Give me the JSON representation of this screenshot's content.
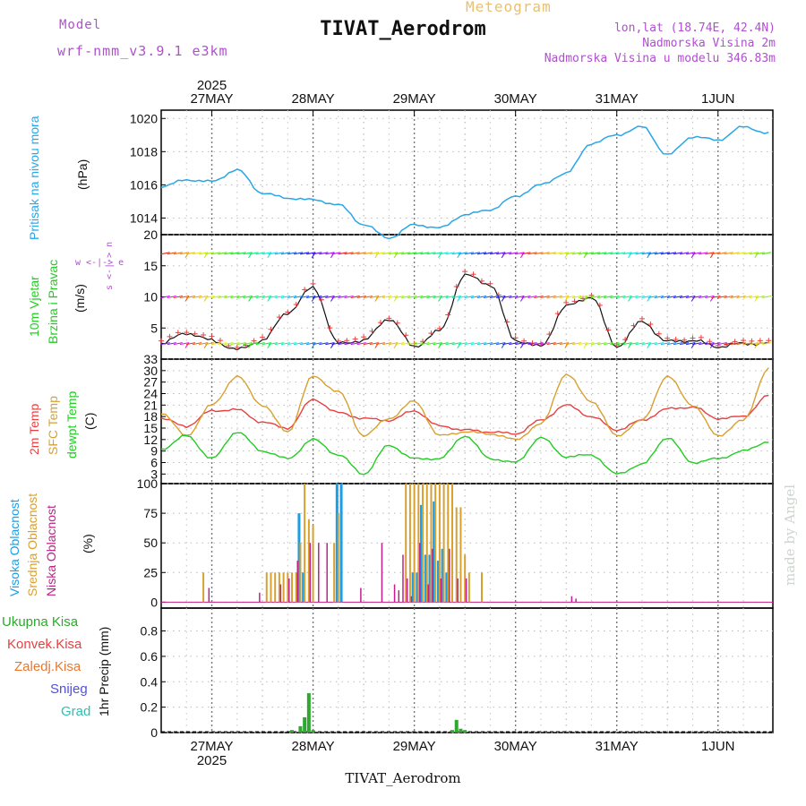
{
  "header": {
    "title": "TIVAT_Aerodrom",
    "meteogram_label": "Meteogram",
    "model_label": "Model",
    "model_name": "wrf-nmm_v3.9.1 e3km",
    "lonlat": "lon,lat (18.74E, 42.4N)",
    "elevation": "Nadmorska Visina 2m",
    "model_elevation": "Nadmorska Visina u modelu 346.83m",
    "footer_location": "TIVAT_Aerodrom",
    "credit": "made by Angel"
  },
  "legend": {
    "pressure": [
      "Pritisak na nivou mora"
    ],
    "pressure_unit": "(hPa)",
    "wind": [
      "10m Vjetar",
      "Brzina i Pravac"
    ],
    "wind_unit": "(m/s)",
    "wind_compass": "w <-|-> e",
    "wind_compass_vertical": "s <-|-> n",
    "temp": [
      "2m Temp",
      "SFC Temp",
      "dewpt Temp"
    ],
    "temp_unit": "(C)",
    "cloud": [
      "Visoka Oblacnost",
      "Srednja Oblacnost",
      "Niska Oblacnost"
    ],
    "cloud_unit": "(%)",
    "precip": [
      "Ukupna Kisa",
      "Konvek.Kisa",
      "Zaledj.Kisa",
      "Snijeg",
      "Grad"
    ],
    "precip_unit": "1hr Precip (mm)"
  },
  "colors": {
    "pressure": "#2aa6e6",
    "temp2m": "#e84040",
    "sfc": "#d8a030",
    "dewpt": "#22cc22",
    "cloud_high": "#1a9ee6",
    "cloud_mid": "#d8a030",
    "cloud_low": "#c0208a",
    "precip_total": "#2ea82e",
    "precip_conv": "#e84040",
    "precip_frz": "#e87830",
    "precip_snow": "#5050e0",
    "precip_grad": "#30c0b0",
    "label_purple": "#b04fd0"
  },
  "chart_data": [
    {
      "type": "line",
      "title": "Pritisak na nivou mora",
      "ylabel": "(hPa)",
      "xlabel": "",
      "x_start_label": "2025",
      "date_labels": [
        "27MAY",
        "28MAY",
        "29MAY",
        "30MAY",
        "31MAY",
        "1JUN"
      ],
      "ylim": [
        1013,
        1020.5
      ],
      "yticks": [
        1014,
        1016,
        1018,
        1020
      ],
      "x_hours": [
        0,
        6,
        12,
        18,
        24,
        30,
        36,
        42,
        48,
        54,
        60,
        66,
        72,
        78,
        84,
        90,
        96,
        102,
        108,
        114,
        120,
        126,
        132,
        138,
        144
      ],
      "series": [
        {
          "name": "MSLP",
          "values": [
            1015.9,
            1016.3,
            1016.2,
            1016.9,
            1015.5,
            1015.2,
            1015.1,
            1014.8,
            1013.6,
            1012.8,
            1013.6,
            1013.4,
            1014.2,
            1014.5,
            1015.3,
            1016.0,
            1016.7,
            1018.5,
            1019.0,
            1019.5,
            1017.8,
            1018.9,
            1018.7,
            1019.5,
            1019.1
          ]
        }
      ]
    },
    {
      "type": "line",
      "title": "10m Vjetar Brzina i Pravac",
      "ylabel": "(m/s)",
      "xlabel": "",
      "ylim": [
        0,
        20
      ],
      "yticks": [
        5,
        10,
        15,
        20
      ],
      "x_hours": [
        0,
        6,
        12,
        18,
        24,
        30,
        36,
        42,
        48,
        54,
        60,
        66,
        72,
        78,
        84,
        90,
        96,
        102,
        108,
        114,
        120,
        126,
        132,
        138,
        144
      ],
      "series": [
        {
          "name": "wind speed",
          "values": [
            2.5,
            4.2,
            3.0,
            1.5,
            3.0,
            7.5,
            11.5,
            2.5,
            3.0,
            6.5,
            2.0,
            4.5,
            13.5,
            12.0,
            3.0,
            2.0,
            8.5,
            10.0,
            2.0,
            6.0,
            2.8,
            3.0,
            2.0,
            2.5,
            2.5
          ]
        }
      ]
    },
    {
      "type": "line",
      "title": "2m Temp / SFC Temp / dewpt Temp",
      "ylabel": "(C)",
      "xlabel": "",
      "ylim": [
        0.5,
        33
      ],
      "yticks": [
        3,
        6,
        9,
        12,
        15,
        18,
        21,
        24,
        27,
        30,
        33
      ],
      "x_hours": [
        0,
        6,
        12,
        18,
        24,
        30,
        36,
        42,
        48,
        54,
        60,
        66,
        72,
        78,
        84,
        90,
        96,
        102,
        108,
        114,
        120,
        126,
        132,
        138,
        144
      ],
      "series": [
        {
          "name": "2m Temp",
          "values": [
            17.5,
            15.5,
            19.5,
            19.8,
            16.5,
            15.0,
            22.5,
            19.0,
            17.5,
            17.0,
            19.5,
            15.5,
            14.5,
            14.0,
            13.5,
            17.0,
            21.0,
            18.0,
            14.5,
            17.0,
            20.0,
            20.5,
            17.5,
            18.0,
            23.5
          ]
        },
        {
          "name": "SFC Temp",
          "values": [
            19.0,
            13.0,
            21.0,
            28.5,
            21.0,
            14.0,
            28.5,
            24.5,
            13.0,
            17.5,
            22.0,
            13.0,
            14.0,
            13.5,
            12.0,
            16.0,
            29.0,
            22.0,
            13.0,
            17.0,
            28.5,
            21.0,
            13.0,
            17.0,
            30.5
          ]
        },
        {
          "name": "dewpt Temp",
          "values": [
            9.5,
            13.0,
            7.0,
            14.0,
            9.0,
            7.0,
            12.0,
            8.0,
            3.0,
            10.5,
            7.0,
            7.0,
            13.0,
            7.0,
            6.0,
            12.5,
            7.5,
            8.0,
            3.0,
            5.5,
            12.5,
            6.0,
            7.0,
            9.0,
            11.5
          ]
        }
      ]
    },
    {
      "type": "bar",
      "title": "Visoka / Srednja / Niska Oblacnost",
      "ylabel": "(%)",
      "xlabel": "",
      "ylim": [
        -5,
        100
      ],
      "yticks": [
        0,
        25,
        50,
        75,
        100
      ],
      "series": [
        {
          "name": "Visoka Oblacnost",
          "hours": [
            33,
            34,
            42,
            43,
            60,
            61,
            62,
            63,
            64,
            65,
            66,
            67,
            68
          ],
          "values": [
            75,
            25,
            100,
            100,
            25,
            25,
            82,
            40,
            40,
            85,
            35,
            45,
            25
          ]
        },
        {
          "name": "Srednja Oblacnost",
          "hours": [
            10,
            25,
            26,
            27,
            28,
            29,
            30,
            31,
            32,
            33,
            34,
            35,
            36,
            41,
            42,
            58,
            59,
            60,
            61,
            62,
            63,
            64,
            65,
            66,
            67,
            68,
            69,
            70,
            71,
            72,
            73,
            76
          ],
          "values": [
            25,
            25,
            25,
            25,
            25,
            25,
            25,
            25,
            25,
            50,
            100,
            70,
            65,
            50,
            75,
            100,
            100,
            100,
            100,
            100,
            100,
            100,
            100,
            100,
            100,
            100,
            100,
            80,
            80,
            40,
            25,
            25
          ]
        },
        {
          "name": "Niska Oblacnost",
          "hours": [
            11,
            23,
            28,
            30,
            32,
            35,
            37,
            39,
            47,
            52,
            55,
            56,
            57,
            58,
            59,
            61,
            63,
            64,
            66,
            68,
            70,
            72,
            97,
            98
          ],
          "values": [
            12,
            8,
            15,
            20,
            35,
            50,
            50,
            50,
            12,
            50,
            15,
            10,
            40,
            20,
            5,
            50,
            15,
            45,
            20,
            45,
            20,
            20,
            5,
            3
          ]
        }
      ]
    },
    {
      "type": "bar",
      "title": "1hr Precip",
      "ylabel": "1hr Precip (mm)",
      "xlabel": "",
      "ylim": [
        0,
        0.98
      ],
      "yticks": [
        0,
        0.2,
        0.4,
        0.6,
        0.8
      ],
      "series": [
        {
          "name": "Ukupna Kisa",
          "hours": [
            31,
            33,
            34,
            35,
            36,
            69,
            70,
            71,
            72
          ],
          "values": [
            0.02,
            0.05,
            0.12,
            0.31,
            0.02,
            0.02,
            0.1,
            0.03,
            0.02
          ]
        },
        {
          "name": "Konvek.Kisa",
          "hours": [],
          "values": []
        },
        {
          "name": "Zaledj.Kisa",
          "hours": [],
          "values": []
        },
        {
          "name": "Snijeg",
          "hours": [],
          "values": []
        },
        {
          "name": "Grad",
          "hours": [],
          "values": []
        }
      ]
    }
  ]
}
